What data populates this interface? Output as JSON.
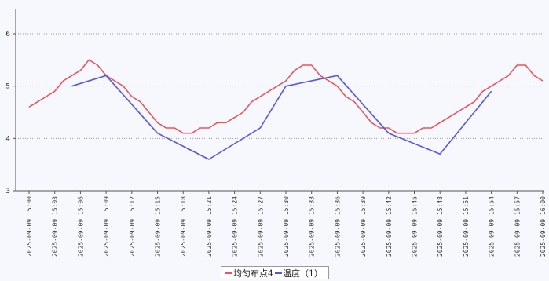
{
  "chart_data": {
    "type": "line",
    "title": "",
    "xlabel": "",
    "ylabel": "",
    "ylim": [
      3,
      6.5
    ],
    "yticks": [
      3,
      4,
      5,
      6
    ],
    "grid": "horizontal dotted",
    "legend_position": "bottom",
    "x_tick_labels": [
      "2025-09-09 15:00",
      "2025-09-09 15:03",
      "2025-09-09 15:06",
      "2025-09-09 15:09",
      "2025-09-09 15:12",
      "2025-09-09 15:15",
      "2025-09-09 15:18",
      "2025-09-09 15:21",
      "2025-09-09 15:24",
      "2025-09-09 15:27",
      "2025-09-09 15:30",
      "2025-09-09 15:33",
      "2025-09-09 15:36",
      "2025-09-09 15:39",
      "2025-09-09 15:42",
      "2025-09-09 15:45",
      "2025-09-09 15:48",
      "2025-09-09 15:51",
      "2025-09-09 15:54",
      "2025-09-09 15:57",
      "2025-09-09 16:00"
    ],
    "series": [
      {
        "name": "均匀布点4",
        "color": "#e8545a",
        "x": [
          "15:00",
          "15:01",
          "15:02",
          "15:03",
          "15:04",
          "15:05",
          "15:06",
          "15:07",
          "15:08",
          "15:09",
          "15:10",
          "15:11",
          "15:12",
          "15:13",
          "15:14",
          "15:15",
          "15:16",
          "15:17",
          "15:18",
          "15:19",
          "15:20",
          "15:21",
          "15:22",
          "15:23",
          "15:24",
          "15:25",
          "15:26",
          "15:27",
          "15:28",
          "15:29",
          "15:30",
          "15:31",
          "15:32",
          "15:33",
          "15:34",
          "15:35",
          "15:36",
          "15:37",
          "15:38",
          "15:39",
          "15:40",
          "15:41",
          "15:42",
          "15:43",
          "15:44",
          "15:45",
          "15:46",
          "15:47",
          "15:48",
          "15:49",
          "15:50",
          "15:51",
          "15:52",
          "15:53",
          "15:54",
          "15:55",
          "15:56",
          "15:57",
          "15:58",
          "15:59",
          "16:00"
        ],
        "values": [
          4.6,
          4.7,
          4.8,
          4.9,
          5.1,
          5.2,
          5.3,
          5.5,
          5.4,
          5.2,
          5.1,
          5.0,
          4.8,
          4.7,
          4.5,
          4.3,
          4.2,
          4.2,
          4.1,
          4.1,
          4.2,
          4.2,
          4.3,
          4.3,
          4.4,
          4.5,
          4.7,
          4.8,
          4.9,
          5.0,
          5.1,
          5.3,
          5.4,
          5.4,
          5.2,
          5.1,
          5.0,
          4.8,
          4.7,
          4.5,
          4.3,
          4.2,
          4.2,
          4.1,
          4.1,
          4.1,
          4.2,
          4.2,
          4.3,
          4.4,
          4.5,
          4.6,
          4.7,
          4.9,
          5.0,
          5.1,
          5.2,
          5.4,
          5.4,
          5.2,
          5.1
        ]
      },
      {
        "name": "温度（1）",
        "color": "#5457e0",
        "x": [
          "15:05",
          "15:09",
          "15:15",
          "15:21",
          "15:27",
          "15:30",
          "15:36",
          "15:42",
          "15:48",
          "15:54"
        ],
        "values": [
          5.0,
          5.2,
          4.1,
          3.6,
          4.2,
          5.0,
          5.2,
          4.1,
          3.7,
          4.9
        ]
      }
    ]
  }
}
